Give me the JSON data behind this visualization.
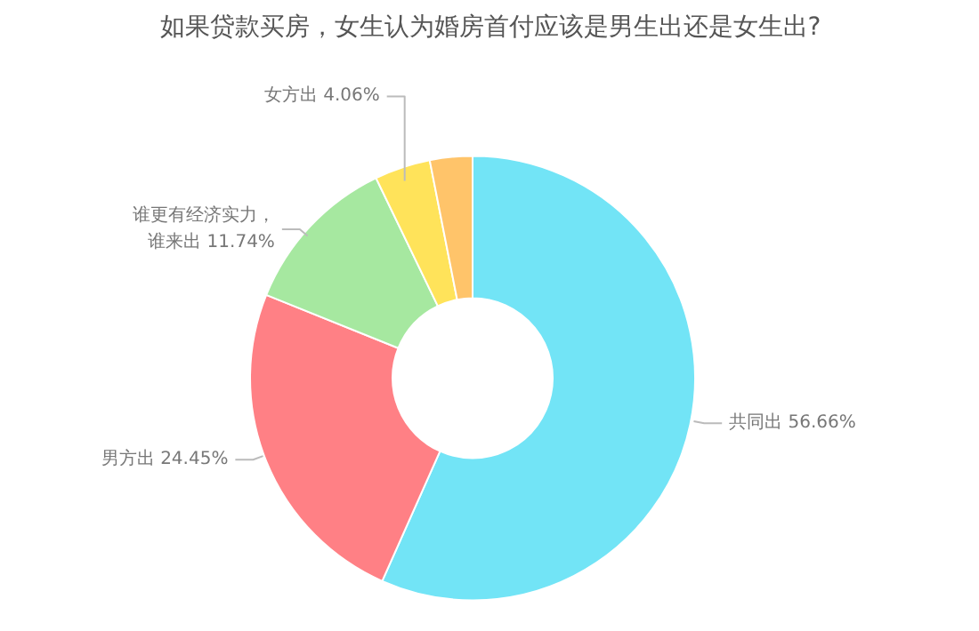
{
  "chart_data": {
    "type": "donut",
    "title": "如果贷款买房，女生认为婚房首付应该是男生出还是女生出?",
    "categories": [
      "共同出",
      "男方出",
      "谁更有经济实力，谁来出",
      "女方出",
      null
    ],
    "values": [
      56.66,
      24.45,
      11.74,
      4.06,
      3.09
    ],
    "colors": [
      "#72e4f6",
      "#ff8085",
      "#a6e8a0",
      "#ffe35a",
      "#ffc46a"
    ],
    "value_labels": [
      "56.66%",
      "24.45%",
      "11.74%",
      "4.06%",
      null
    ],
    "legend": false
  }
}
